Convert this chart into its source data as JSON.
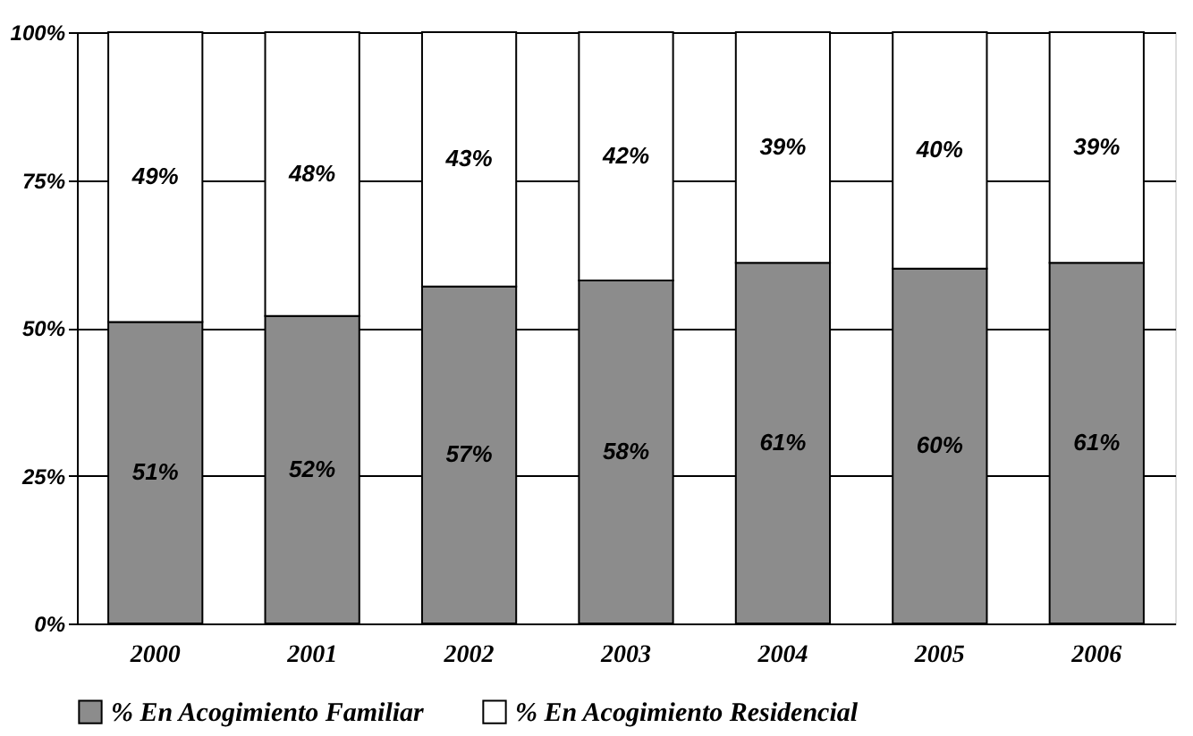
{
  "chart_data": {
    "type": "bar",
    "stacked": true,
    "categories": [
      "2000",
      "2001",
      "2002",
      "2003",
      "2004",
      "2005",
      "2006"
    ],
    "series": [
      {
        "name": "% En Acogimiento Familiar",
        "color": "#8c8c8c",
        "values": [
          51,
          52,
          57,
          58,
          61,
          60,
          61
        ],
        "value_labels": [
          "51%",
          "52%",
          "57%",
          "58%",
          "61%",
          "60%",
          "61%"
        ]
      },
      {
        "name": "% En Acogimiento Residencial",
        "color": "#ffffff",
        "values": [
          49,
          48,
          43,
          42,
          39,
          40,
          39
        ],
        "value_labels": [
          "49%",
          "48%",
          "43%",
          "42%",
          "39%",
          "40%",
          "39%"
        ]
      }
    ],
    "ylim": [
      0,
      100
    ],
    "yticks": [
      {
        "value": 0,
        "label": "0%"
      },
      {
        "value": 25,
        "label": "25%"
      },
      {
        "value": 50,
        "label": "50%"
      },
      {
        "value": 75,
        "label": "75%"
      },
      {
        "value": 100,
        "label": "100%"
      }
    ],
    "grid": "y",
    "legend": "bottom"
  }
}
